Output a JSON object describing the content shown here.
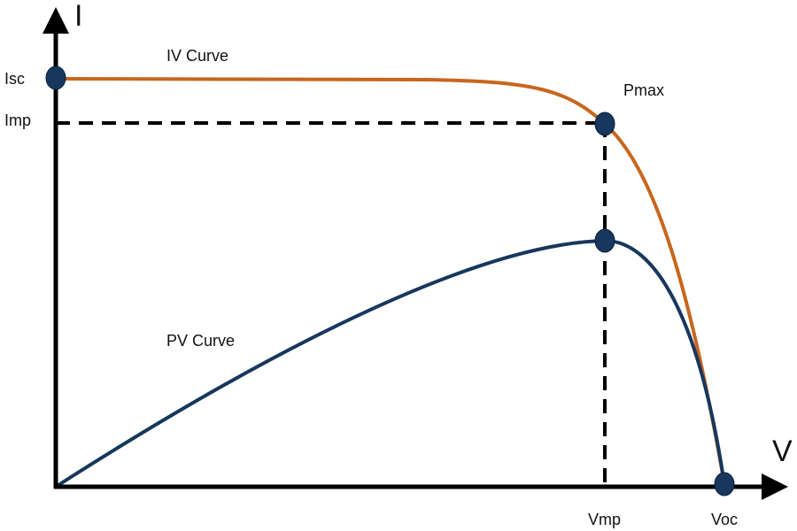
{
  "axes": {
    "y_label": "I",
    "x_label": "V"
  },
  "labels": {
    "isc": "Isc",
    "imp": "Imp",
    "vmp": "Vmp",
    "voc": "Voc",
    "pmax": "Pmax"
  },
  "curves": {
    "iv": "IV Curve",
    "pv": "PV Curve"
  }
}
